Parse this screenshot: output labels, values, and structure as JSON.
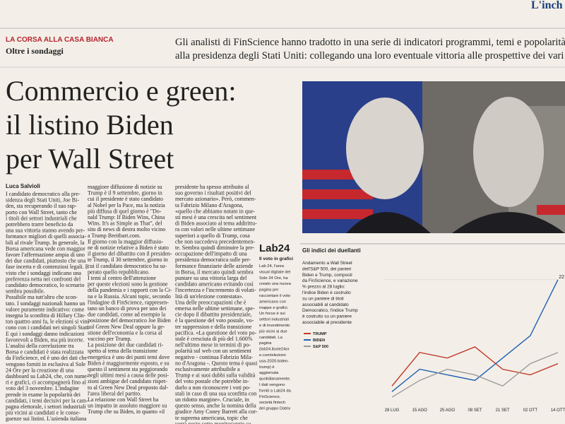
{
  "masthead": "L'inch",
  "kicker": "LA CORSA ALLA CASA BIANCA",
  "section": "Oltre i sondaggi",
  "standfirst": [
    "Gli analisti di FinScience hanno tradotto in una serie di indicatori programmi, temi e popolarità dei candi",
    "alla presidenza degli Stati Uniti: collegando una loro eventuale vittoria alle prospettive dei vari settori ind"
  ],
  "headline": [
    "Commercio e green:",
    "il listino Biden",
    "per Wall Street"
  ],
  "author": "Luca Salvioli",
  "columns": [
    [
      "I candidato democratico alla pre-",
      "sidenza degli Stati Uniti, Joe Bi-",
      "den, sta recuperando il suo rap-",
      "porto con Wall Street, tanto che",
      "i titoli dei settori industriali che",
      "potrebbero trarre beneficio da",
      "una sua vittoria stanno avendo per-",
      "formance migliori di quelli associa-",
      "bili al rivale Trump. In generale, la",
      "Borsa americana vede con maggior",
      "favore l'affermazione ampia di uno",
      "dei due candidati, piuttosto che una",
      "fase incerta e di contenziosi legali. E",
      "visto che i sondaggi indicano una",
      "preferenza netta nei confronti del",
      "candidato democratico, lo scenario",
      "sembra possibile.",
      "Possibile ma tutt'altro che scon-",
      "tato. I sondaggi nazionali hanno un",
      "valore puramente indicativo: come",
      "insegna la sconfitta di Hillary Clin-",
      "ton quattro anni fa, le elezioni si vin-",
      "cono con i candidati nei singoli Stati.",
      "E qui i sondaggi danno indicazioni",
      "favorevoli a Biden, ma più incerte.",
      "L'analisi della correlazione tra",
      "Borsa e candidati è stata realizzata",
      "da FinScience, ed è uno dei dati che",
      "vengono forniti in esclusiva al Sole",
      "24 Ore per la creazione di una",
      "dashboard su Lab24, che, con nume-",
      "ri e grafici, ci accompagnerà fino al",
      "voto del 3 novembre. L'indagine",
      "prende in esame la popolarità dei",
      "candidati, i temi decisivi per la cam-",
      "pagna elettorale, i settori industriali",
      "più vicini ai candidati e le conse-",
      "guenze sui listini. L'azienda italiana"
    ],
    [
      "maggiore diffusione di notizie su",
      "Trump è il 9 settembre, giorno in",
      "cui il presidente è stato candidato",
      "al Nobel per la Pace, ma la notizia",
      "più diffusa di quel giorno è \"Do-",
      "nald Trump: If Biden Wins, China",
      "Wins. It's as Simple as That\", del",
      "sito di news di destra molto vicino",
      "a Trump Breitbart.com.",
      "Il giorno con la maggior diffusio-",
      "ne di notizie relative a Biden è stato",
      "il giorno del dibattito con il presiden-",
      "te Trump, il 30 settembre, giorno in",
      "cui il candidato democratico ha su-",
      "perato quello repubblicano.",
      "I temi al centro dell'attenzione",
      "per queste elezioni sono la gestione",
      "della pandemia e i rapporti con la Ci-",
      "na e la Russia. Alcuni topic, secondo",
      "l'indagine di FinScience, rappresen-",
      "tano un banco di prova per uno dei",
      "due candidati, come ad esempio la",
      "posizione del democratico Joe Biden",
      "sul Green New Deal oppure la ge-",
      "stione dell'economia e la corsa al",
      "vaccino per Trump.",
      "La posizione dei due candidati ri-",
      "spetto al tema della transizione",
      "energetica è uno dei punti temi dove",
      "Biden è maggiormente esposto, e su",
      "questo il sentiment sta peggiorando",
      "negli ultimi mesi a causa delle posi-",
      "zioni ambigue del candidato rispet-",
      "to al Green New Deal proposto dal-",
      "l'area liberal del partito.",
      "La relazione con Wall Street ha",
      "un impatto in assoluto maggiore su",
      "Trump che su Biden, in quanto «il"
    ],
    [
      "presidente ha spesso attribuito al",
      "suo governo i risultati positivi del",
      "mercato azionario». Però, commen-",
      "ta Fabrizio Milano d'Aragona,",
      "«quello che abbiamo notato in que-",
      "sti mesi è una crescita nel sentiment",
      "di Biden associato al tema addirittu-",
      "ra con valori nelle ultime settimane",
      "superiori a quello di Trump, cosa",
      "che non succedeva precedentemen-",
      "te. Sembra quindi diminuire la pre-",
      "occupazione dell'impatto di una",
      "presidenza democratica sulle per-",
      "formance finanziarie delle aziende",
      "in Borsa, il mercato quindi sembra",
      "puntare su una vittoria larga del",
      "candidato americano evitando così",
      "l'incertezza e l'incremento di volati-",
      "lità di un'elezione contestata».",
      "Una delle preoccupazioni che è",
      "emersa nelle ultime settimane, spe-",
      "cie dopo il dibattito presidenziale,",
      "è la questione del voto postale, vo-",
      "ter suppression e della transizione",
      "pacifica. «La questione del voto po-",
      "stale è cresciuta di più del 1.600%",
      "nell'ultimo mese in termini di po-",
      "polarità sul web con un sentiment",
      "negativo - continua Fabrizio Mila-",
      "no d'Aragona -. Questo tema è quasi",
      "esclusivamente attribuibile a",
      "Trump e ai suoi dubbi sulla validità",
      "del voto postale che potrebbe in-",
      "durlo a non riconoscere i voti po-",
      "stali in caso di una sua sconfitta con",
      "un ridotto margine». Cruciale, in",
      "questo senso, anche la nomina della",
      "giudice Amy Coney Barrett alla cor-",
      "te suprema americana, topic che",
      "verrà posto sotto monitoraggio su"
    ]
  ],
  "lab24": {
    "logo": "Lab24",
    "title": "Il voto in grafici",
    "lines": [
      "Lab 24, l'area",
      "visual digitale del",
      "Sole 24 Ore, ha",
      "creato una nuova",
      "pagina per",
      "raccontare il voto",
      "americano con",
      "mappe e grafici.",
      "Un focus è sui",
      "settori industriali",
      "e di investimento",
      "più vicini ai due",
      "candidati. La",
      "pagina",
      "(lab24.ilsole24or",
      "e.com/elezioni-",
      "usa-2020-biden-",
      "trump) è",
      "aggiornata",
      "quotidianamente.",
      "I dati vengono",
      "forniti a Lab24 da",
      "FinScience,",
      "società fintech",
      "del gruppo Datrix"
    ]
  },
  "chart_data": {
    "type": "line",
    "title": "Gli indici dei duellanti",
    "description": [
      "Andamento a Wall Street",
      "dell'S&P 500, dei panieri",
      "Biden e Trump, composti",
      "da FinScience, e variazione",
      "% prezzo al 28 luglio:",
      "l'indice Biden è costruito",
      "su un paniere di titoli",
      "associabili al candidato",
      "Democratico, l'indice Trump",
      "è costruito su un paniere",
      "associabile al presidente"
    ],
    "categories": [
      "28 LUG",
      "15 AGO",
      "25 AGO",
      "08 SET",
      "21 SET",
      "02 OTT",
      "14 OTT"
    ],
    "series": [
      {
        "name": "TRUMP",
        "color": "#c0392b",
        "values": [
          3,
          9,
          8,
          10,
          6,
          5,
          7
        ]
      },
      {
        "name": "BIDEN",
        "color": "#1f5fb0",
        "values": [
          2,
          6,
          5,
          4,
          8,
          12,
          22
        ]
      },
      {
        "name": "S&P 500",
        "color": "#9a9a9a",
        "values": [
          1,
          4,
          6,
          5,
          3,
          7,
          9
        ]
      }
    ],
    "ylim": [
      0,
      24
    ],
    "yticks": [
      22
    ],
    "grid": true
  }
}
